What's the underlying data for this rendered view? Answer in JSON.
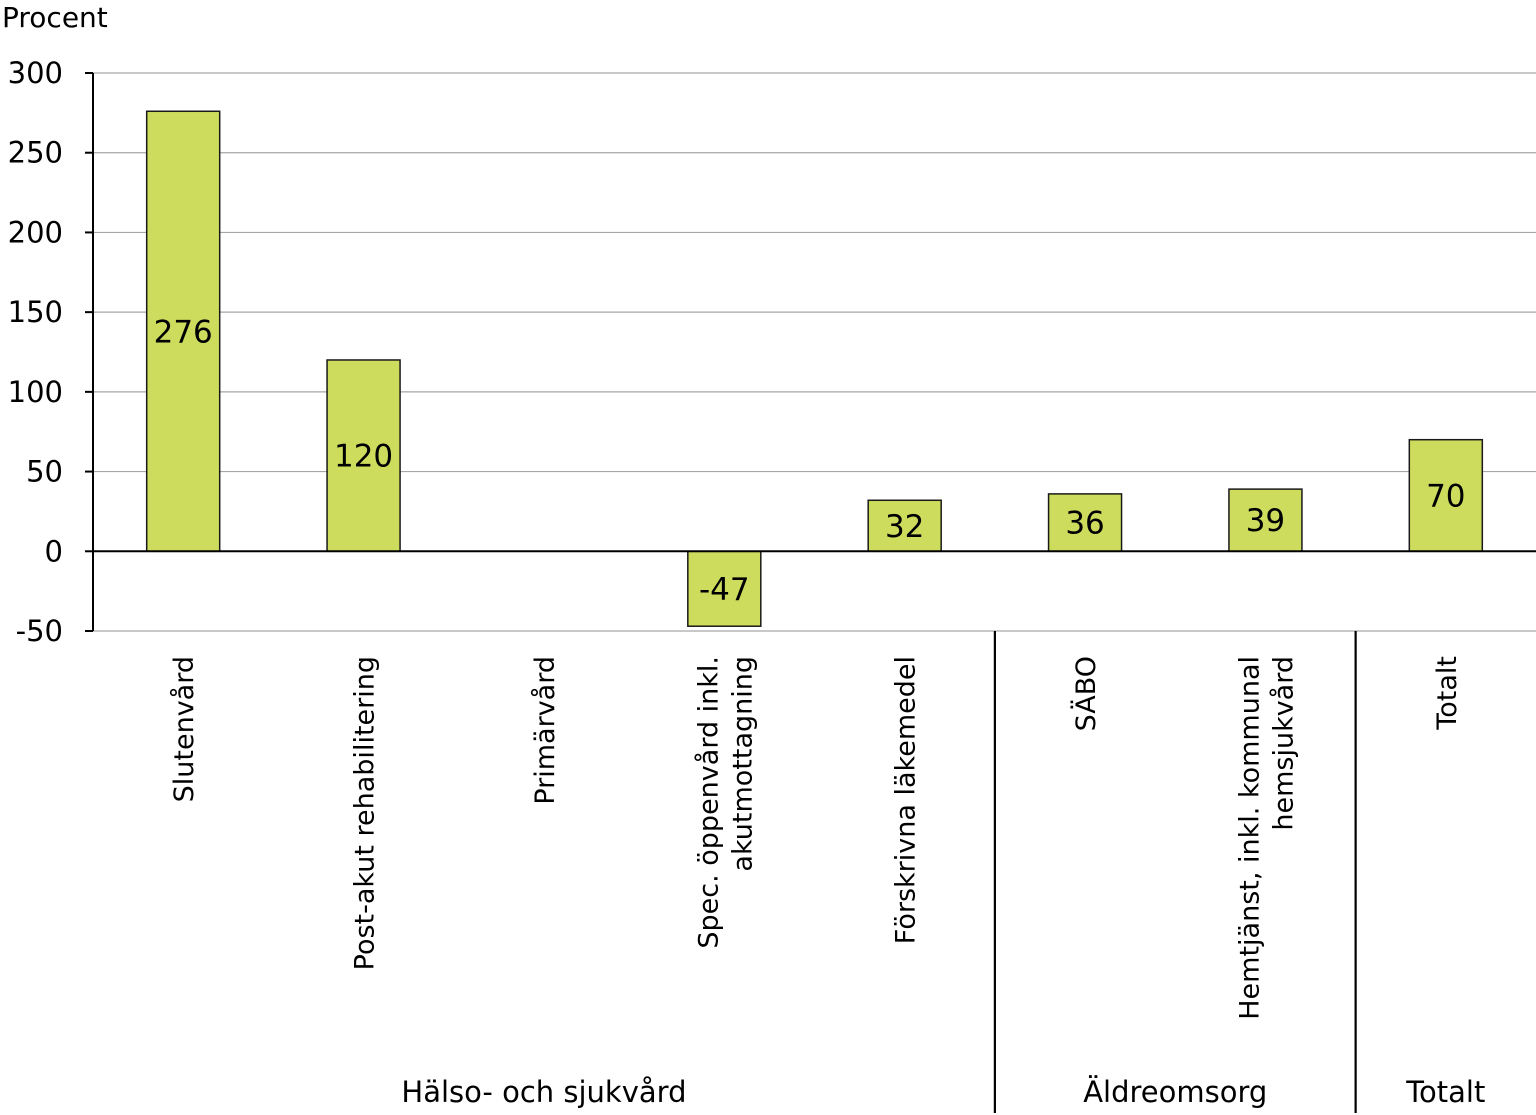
{
  "chart_data": {
    "type": "bar",
    "title": "",
    "ylabel": "Procent",
    "xlabel": "",
    "ylim": [
      -50,
      300
    ],
    "yticks": [
      -50,
      0,
      50,
      100,
      150,
      200,
      250,
      300
    ],
    "grid": true,
    "categories": [
      "Slutenvård",
      "Post-akut rehabilitering",
      "Primärvård",
      "Spec. öppenvård inkl. akutmottagning",
      "Förskrivna läkemedel",
      "SÄBO",
      "Hemtjänst, inkl. kommunal hemsjukvård",
      "Totalt"
    ],
    "category_lines": [
      [
        "Slutenvård"
      ],
      [
        "Post-akut rehabilitering"
      ],
      [
        "Primärvård"
      ],
      [
        "Spec. öppenvård inkl.",
        "akutmottagning"
      ],
      [
        "Förskrivna läkemedel"
      ],
      [
        "SÄBO"
      ],
      [
        "Hemtjänst, inkl. kommunal",
        "hemsjukvård"
      ],
      [
        "Totalt"
      ]
    ],
    "values": [
      276,
      120,
      null,
      -47,
      32,
      36,
      39,
      70
    ],
    "data_labels": [
      "276",
      "120",
      "",
      "-47",
      "32",
      "36",
      "39",
      "70"
    ],
    "groups": [
      {
        "label": "Hälso- och sjukvård",
        "start": 0,
        "end": 4
      },
      {
        "label": "Äldreomsorg",
        "start": 5,
        "end": 6
      },
      {
        "label": "Totalt",
        "start": 7,
        "end": 7
      }
    ],
    "colors": {
      "bar": "#cddc5c",
      "bar_border": "#1a1a1a",
      "grid": "#a6a6a6"
    }
  }
}
